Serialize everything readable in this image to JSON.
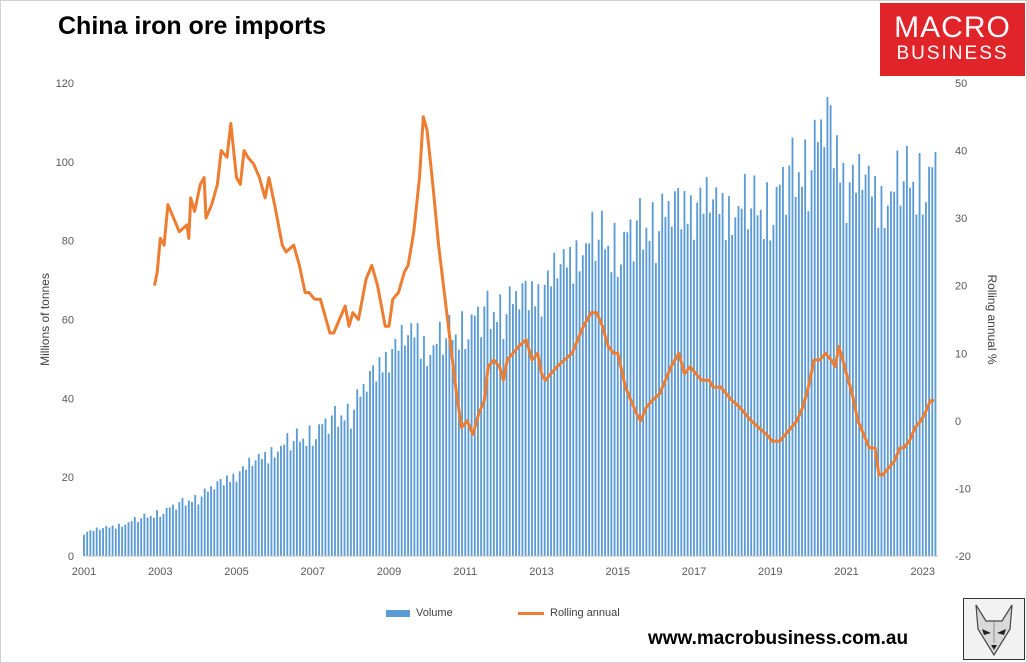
{
  "header": {
    "title": "China iron ore imports"
  },
  "logo": {
    "line1": "MACRO",
    "line2": "BUSINESS",
    "color": "#e1232a"
  },
  "footer": {
    "website": "www.macrobusiness.com.au"
  },
  "chart_data": {
    "type": "bar",
    "title": "China iron ore imports",
    "ylabel": "Millions of tonnes",
    "y2label": "Rolling annual %",
    "ylim": [
      0,
      120
    ],
    "y2lim": [
      -20,
      50
    ],
    "xlim": [
      2001,
      2023.33
    ],
    "x_ticks": [
      "2001",
      "2003",
      "2005",
      "2007",
      "2009",
      "2011",
      "2013",
      "2015",
      "2017",
      "2019",
      "2021",
      "2023"
    ],
    "y_ticks": [
      "0",
      "20",
      "40",
      "60",
      "80",
      "100",
      "120"
    ],
    "y2_ticks": [
      "-20",
      "-10",
      "0",
      "10",
      "20",
      "30",
      "40",
      "50"
    ],
    "legend": [
      "Volume",
      "Rolling annual"
    ],
    "legend_position": "bottom",
    "grid": false,
    "colors": {
      "volume": "#5b9bd5",
      "rolling": "#ed7d31"
    },
    "series": [
      {
        "name": "Volume",
        "type": "bar",
        "axis": "left",
        "points": [
          [
            2001,
            6
          ],
          [
            2002,
            8
          ],
          [
            2003,
            11
          ],
          [
            2004,
            15
          ],
          [
            2005,
            21
          ],
          [
            2006,
            27
          ],
          [
            2007,
            31
          ],
          [
            2008,
            37
          ],
          [
            2009,
            52
          ],
          [
            2009.75,
            57
          ],
          [
            2010,
            52
          ],
          [
            2011,
            58
          ],
          [
            2012,
            63
          ],
          [
            2013,
            68
          ],
          [
            2014,
            78
          ],
          [
            2014.5,
            80
          ],
          [
            2015,
            78
          ],
          [
            2016,
            85
          ],
          [
            2017,
            90
          ],
          [
            2018,
            88
          ],
          [
            2019,
            88
          ],
          [
            2019.5,
            95
          ],
          [
            2020,
            100
          ],
          [
            2020.5,
            110
          ],
          [
            2021,
            95
          ],
          [
            2021.5,
            95
          ],
          [
            2022,
            90
          ],
          [
            2022.5,
            95
          ],
          [
            2023,
            95
          ],
          [
            2023.33,
            96
          ]
        ]
      },
      {
        "name": "Rolling annual",
        "type": "line",
        "axis": "right",
        "points": [
          [
            2002.85,
            20
          ],
          [
            2002.92,
            22
          ],
          [
            2003.0,
            27
          ],
          [
            2003.1,
            26
          ],
          [
            2003.2,
            32
          ],
          [
            2003.35,
            30
          ],
          [
            2003.5,
            28
          ],
          [
            2003.7,
            29
          ],
          [
            2003.75,
            27
          ],
          [
            2003.8,
            33
          ],
          [
            2003.9,
            31
          ],
          [
            2004.05,
            35
          ],
          [
            2004.15,
            36
          ],
          [
            2004.2,
            30
          ],
          [
            2004.35,
            32
          ],
          [
            2004.5,
            35
          ],
          [
            2004.6,
            40
          ],
          [
            2004.75,
            39
          ],
          [
            2004.85,
            44
          ],
          [
            2005.0,
            36
          ],
          [
            2005.1,
            35
          ],
          [
            2005.2,
            40
          ],
          [
            2005.3,
            39
          ],
          [
            2005.45,
            38
          ],
          [
            2005.6,
            36
          ],
          [
            2005.75,
            33
          ],
          [
            2005.85,
            36
          ],
          [
            2006.0,
            32
          ],
          [
            2006.2,
            26
          ],
          [
            2006.3,
            25
          ],
          [
            2006.5,
            26
          ],
          [
            2006.65,
            23
          ],
          [
            2006.8,
            19
          ],
          [
            2006.9,
            19
          ],
          [
            2007.05,
            18
          ],
          [
            2007.2,
            18
          ],
          [
            2007.3,
            16
          ],
          [
            2007.45,
            13
          ],
          [
            2007.55,
            13
          ],
          [
            2007.7,
            15
          ],
          [
            2007.85,
            17
          ],
          [
            2007.95,
            14
          ],
          [
            2008.05,
            16
          ],
          [
            2008.2,
            15
          ],
          [
            2008.4,
            21
          ],
          [
            2008.55,
            23
          ],
          [
            2008.7,
            20
          ],
          [
            2008.8,
            17
          ],
          [
            2008.9,
            14
          ],
          [
            2009.0,
            14
          ],
          [
            2009.1,
            18
          ],
          [
            2009.25,
            19
          ],
          [
            2009.4,
            22
          ],
          [
            2009.5,
            23
          ],
          [
            2009.65,
            28
          ],
          [
            2009.8,
            36
          ],
          [
            2009.9,
            45
          ],
          [
            2010.0,
            43
          ],
          [
            2010.15,
            35
          ],
          [
            2010.3,
            26
          ],
          [
            2010.45,
            19
          ],
          [
            2010.6,
            12
          ],
          [
            2010.75,
            5
          ],
          [
            2010.9,
            -1
          ],
          [
            2011.05,
            0
          ],
          [
            2011.2,
            -2
          ],
          [
            2011.35,
            1
          ],
          [
            2011.5,
            3
          ],
          [
            2011.6,
            8
          ],
          [
            2011.75,
            9
          ],
          [
            2011.9,
            8
          ],
          [
            2012.0,
            6
          ],
          [
            2012.1,
            9
          ],
          [
            2012.25,
            10
          ],
          [
            2012.4,
            11
          ],
          [
            2012.6,
            12
          ],
          [
            2012.75,
            9
          ],
          [
            2012.9,
            10
          ],
          [
            2013.0,
            7
          ],
          [
            2013.1,
            6
          ],
          [
            2013.25,
            7
          ],
          [
            2013.4,
            8
          ],
          [
            2013.6,
            9
          ],
          [
            2013.8,
            10
          ],
          [
            2013.95,
            12
          ],
          [
            2014.1,
            14
          ],
          [
            2014.3,
            16
          ],
          [
            2014.45,
            16
          ],
          [
            2014.6,
            14
          ],
          [
            2014.75,
            11
          ],
          [
            2014.9,
            10
          ],
          [
            2015.0,
            10
          ],
          [
            2015.2,
            5
          ],
          [
            2015.35,
            3
          ],
          [
            2015.5,
            1
          ],
          [
            2015.6,
            0
          ],
          [
            2015.75,
            2
          ],
          [
            2015.9,
            3
          ],
          [
            2016.1,
            4
          ],
          [
            2016.25,
            6
          ],
          [
            2016.4,
            8
          ],
          [
            2016.6,
            10
          ],
          [
            2016.75,
            7
          ],
          [
            2016.9,
            8
          ],
          [
            2017.05,
            7
          ],
          [
            2017.2,
            6
          ],
          [
            2017.4,
            6
          ],
          [
            2017.5,
            5
          ],
          [
            2017.7,
            5
          ],
          [
            2017.85,
            4
          ],
          [
            2018.0,
            3
          ],
          [
            2018.2,
            2
          ],
          [
            2018.35,
            1
          ],
          [
            2018.5,
            0
          ],
          [
            2018.7,
            -1
          ],
          [
            2018.9,
            -2
          ],
          [
            2019.05,
            -3
          ],
          [
            2019.25,
            -3
          ],
          [
            2019.4,
            -2
          ],
          [
            2019.55,
            -1
          ],
          [
            2019.7,
            0
          ],
          [
            2019.85,
            2
          ],
          [
            2020.0,
            5
          ],
          [
            2020.15,
            9
          ],
          [
            2020.3,
            9
          ],
          [
            2020.45,
            10
          ],
          [
            2020.6,
            9
          ],
          [
            2020.7,
            8
          ],
          [
            2020.8,
            11
          ],
          [
            2020.9,
            9
          ],
          [
            2021.0,
            7
          ],
          [
            2021.15,
            4
          ],
          [
            2021.3,
            0
          ],
          [
            2021.45,
            -2
          ],
          [
            2021.6,
            -4
          ],
          [
            2021.75,
            -4
          ],
          [
            2021.85,
            -8
          ],
          [
            2021.95,
            -8
          ],
          [
            2022.1,
            -7
          ],
          [
            2022.25,
            -6
          ],
          [
            2022.4,
            -4
          ],
          [
            2022.5,
            -4
          ],
          [
            2022.65,
            -3
          ],
          [
            2022.8,
            -1
          ],
          [
            2022.95,
            0
          ],
          [
            2023.05,
            1
          ],
          [
            2023.2,
            3
          ],
          [
            2023.3,
            3
          ]
        ]
      }
    ]
  }
}
